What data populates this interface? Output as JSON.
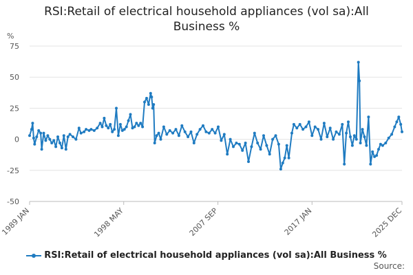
{
  "chart_data": {
    "type": "line",
    "title_lines": [
      "RSI:Retail of electrical household appliances (vol sa):All",
      "Business %"
    ],
    "ylabel": "%",
    "ylim": [
      -50,
      75
    ],
    "yticks": [
      75,
      50,
      25,
      0,
      -25,
      -50
    ],
    "xlim": [
      1989.0,
      2025.92
    ],
    "xtick_labels": [
      {
        "label": "1989 JAN",
        "x": 1989.0
      },
      {
        "label": "1998 MAY",
        "x": 1998.33
      },
      {
        "label": "2007 SEP",
        "x": 2007.67
      },
      {
        "label": "2017 JAN",
        "x": 2017.0
      },
      {
        "label": "2025 DEC",
        "x": 2025.92
      }
    ],
    "color": "#1f7bc1",
    "series": [
      {
        "name": "RSI:Retail of electrical household appliances (vol sa):All Business %",
        "points": [
          [
            1989.0,
            3
          ],
          [
            1989.2,
            8
          ],
          [
            1989.3,
            13
          ],
          [
            1989.4,
            1
          ],
          [
            1989.5,
            -4
          ],
          [
            1989.7,
            2
          ],
          [
            1989.9,
            7
          ],
          [
            1990.1,
            5
          ],
          [
            1990.2,
            -8
          ],
          [
            1990.4,
            5
          ],
          [
            1990.6,
            -1
          ],
          [
            1990.8,
            3
          ],
          [
            1991.0,
            0
          ],
          [
            1991.2,
            -3
          ],
          [
            1991.4,
            -1
          ],
          [
            1991.6,
            -6
          ],
          [
            1991.8,
            2
          ],
          [
            1992.0,
            -3
          ],
          [
            1992.2,
            -7
          ],
          [
            1992.4,
            3
          ],
          [
            1992.6,
            -8
          ],
          [
            1992.8,
            2
          ],
          [
            1993.0,
            4
          ],
          [
            1993.3,
            2
          ],
          [
            1993.6,
            0
          ],
          [
            1993.9,
            9
          ],
          [
            1994.1,
            5
          ],
          [
            1994.4,
            6
          ],
          [
            1994.6,
            8
          ],
          [
            1994.9,
            7
          ],
          [
            1995.1,
            8
          ],
          [
            1995.4,
            7
          ],
          [
            1995.7,
            9
          ],
          [
            1996.0,
            13
          ],
          [
            1996.2,
            10
          ],
          [
            1996.4,
            17
          ],
          [
            1996.6,
            11
          ],
          [
            1996.8,
            9
          ],
          [
            1997.0,
            12
          ],
          [
            1997.2,
            6
          ],
          [
            1997.4,
            8
          ],
          [
            1997.6,
            25
          ],
          [
            1997.8,
            3
          ],
          [
            1998.0,
            12
          ],
          [
            1998.2,
            7
          ],
          [
            1998.4,
            8
          ],
          [
            1998.6,
            10
          ],
          [
            1998.8,
            15
          ],
          [
            1999.0,
            20
          ],
          [
            1999.2,
            9
          ],
          [
            1999.4,
            10
          ],
          [
            1999.6,
            13
          ],
          [
            1999.8,
            11
          ],
          [
            2000.0,
            13
          ],
          [
            2000.2,
            10
          ],
          [
            2000.4,
            30
          ],
          [
            2000.6,
            33
          ],
          [
            2000.8,
            28
          ],
          [
            2001.0,
            37
          ],
          [
            2001.1,
            34
          ],
          [
            2001.2,
            25
          ],
          [
            2001.3,
            28
          ],
          [
            2001.4,
            -3
          ],
          [
            2001.6,
            3
          ],
          [
            2001.8,
            5
          ],
          [
            2002.0,
            0
          ],
          [
            2002.3,
            10
          ],
          [
            2002.6,
            4
          ],
          [
            2002.9,
            7
          ],
          [
            2003.2,
            5
          ],
          [
            2003.5,
            8
          ],
          [
            2003.8,
            3
          ],
          [
            2004.1,
            11
          ],
          [
            2004.4,
            6
          ],
          [
            2004.7,
            2
          ],
          [
            2005.0,
            6
          ],
          [
            2005.3,
            -3
          ],
          [
            2005.6,
            4
          ],
          [
            2005.9,
            8
          ],
          [
            2006.2,
            11
          ],
          [
            2006.5,
            6
          ],
          [
            2006.8,
            5
          ],
          [
            2007.1,
            8
          ],
          [
            2007.4,
            5
          ],
          [
            2007.7,
            10
          ],
          [
            2008.0,
            -1
          ],
          [
            2008.3,
            4
          ],
          [
            2008.6,
            -12
          ],
          [
            2008.9,
            0
          ],
          [
            2009.2,
            -6
          ],
          [
            2009.5,
            -3
          ],
          [
            2009.8,
            -4
          ],
          [
            2010.1,
            -9
          ],
          [
            2010.4,
            -3
          ],
          [
            2010.7,
            -18
          ],
          [
            2011.0,
            -6
          ],
          [
            2011.3,
            5
          ],
          [
            2011.6,
            -3
          ],
          [
            2011.9,
            -8
          ],
          [
            2012.2,
            3
          ],
          [
            2012.5,
            -5
          ],
          [
            2012.8,
            -12
          ],
          [
            2013.1,
            0
          ],
          [
            2013.4,
            3
          ],
          [
            2013.7,
            -4
          ],
          [
            2013.9,
            -24
          ],
          [
            2014.1,
            -19
          ],
          [
            2014.3,
            -15
          ],
          [
            2014.5,
            -5
          ],
          [
            2014.7,
            -15
          ],
          [
            2015.0,
            5
          ],
          [
            2015.2,
            12
          ],
          [
            2015.5,
            9
          ],
          [
            2015.8,
            12
          ],
          [
            2016.1,
            8
          ],
          [
            2016.4,
            10
          ],
          [
            2016.7,
            14
          ],
          [
            2017.0,
            3
          ],
          [
            2017.3,
            10
          ],
          [
            2017.6,
            8
          ],
          [
            2017.9,
            0
          ],
          [
            2018.2,
            13
          ],
          [
            2018.5,
            2
          ],
          [
            2018.8,
            9
          ],
          [
            2019.1,
            0
          ],
          [
            2019.4,
            6
          ],
          [
            2019.7,
            4
          ],
          [
            2020.0,
            12
          ],
          [
            2020.2,
            -20
          ],
          [
            2020.4,
            5
          ],
          [
            2020.6,
            14
          ],
          [
            2020.8,
            2
          ],
          [
            2021.0,
            -5
          ],
          [
            2021.2,
            3
          ],
          [
            2021.4,
            0
          ],
          [
            2021.6,
            62
          ],
          [
            2021.7,
            47
          ],
          [
            2021.8,
            -3
          ],
          [
            2022.0,
            8
          ],
          [
            2022.2,
            2
          ],
          [
            2022.4,
            -5
          ],
          [
            2022.6,
            18
          ],
          [
            2022.8,
            -20
          ],
          [
            2023.0,
            -10
          ],
          [
            2023.2,
            -14
          ],
          [
            2023.4,
            -13
          ],
          [
            2023.6,
            -8
          ],
          [
            2023.8,
            -4
          ],
          [
            2024.0,
            -5
          ],
          [
            2024.3,
            -3
          ],
          [
            2024.6,
            1
          ],
          [
            2024.9,
            4
          ],
          [
            2025.2,
            10
          ],
          [
            2025.4,
            14
          ],
          [
            2025.6,
            18
          ],
          [
            2025.8,
            12
          ],
          [
            2025.92,
            6
          ]
        ]
      }
    ]
  },
  "legend_label": "RSI:Retail of electrical household appliances (vol sa):All Business %",
  "source_label": "Source:"
}
